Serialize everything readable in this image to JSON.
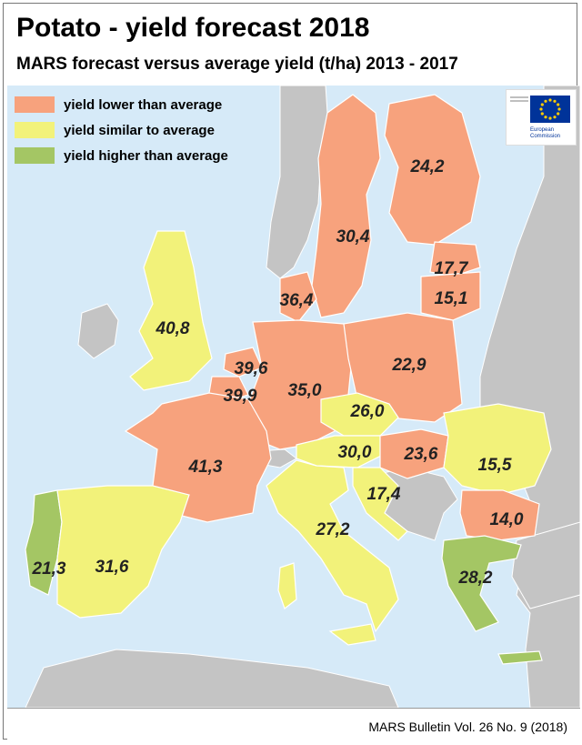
{
  "title": "Potato - yield forecast 2018",
  "subtitle": "MARS forecast versus average yield (t/ha) 2013 - 2017",
  "source": "MARS Bulletin Vol. 26 No. 9 (2018)",
  "logo": {
    "text_1": "European",
    "text_2": "Commission"
  },
  "colors": {
    "sea": "#d6eaf8",
    "lower": "#f7a27d",
    "similar": "#f2f27a",
    "higher": "#a4c664",
    "nodata": "#c4c4c4",
    "border": "#ffffff"
  },
  "legend": [
    {
      "label": "yield lower than average",
      "category": "lower"
    },
    {
      "label": "yield similar to average",
      "category": "similar"
    },
    {
      "label": "yield higher than average",
      "category": "higher"
    }
  ],
  "regions": [
    {
      "value": "24,2",
      "category": "lower"
    },
    {
      "value": "30,4",
      "category": "lower"
    },
    {
      "value": "17,7",
      "category": "lower"
    },
    {
      "value": "15,1",
      "category": "lower"
    },
    {
      "value": "36,4",
      "category": "lower"
    },
    {
      "value": "40,8",
      "category": "similar"
    },
    {
      "value": "39,6",
      "category": "lower"
    },
    {
      "value": "39,9",
      "category": "lower"
    },
    {
      "value": "35,0",
      "category": "lower"
    },
    {
      "value": "22,9",
      "category": "lower"
    },
    {
      "value": "26,0",
      "category": "similar"
    },
    {
      "value": "30,0",
      "category": "similar"
    },
    {
      "value": "23,6",
      "category": "lower"
    },
    {
      "value": "15,5",
      "category": "similar"
    },
    {
      "value": "41,3",
      "category": "lower"
    },
    {
      "value": "17,4",
      "category": "similar"
    },
    {
      "value": "27,2",
      "category": "similar"
    },
    {
      "value": "14,0",
      "category": "lower"
    },
    {
      "value": "21,3",
      "category": "higher"
    },
    {
      "value": "31,6",
      "category": "similar"
    },
    {
      "value": "28,2",
      "category": "higher"
    }
  ]
}
